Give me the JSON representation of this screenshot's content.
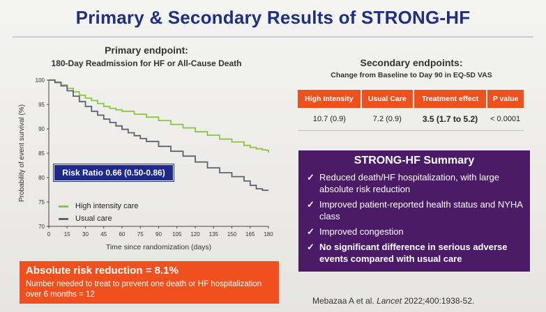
{
  "title": "Primary & Secondary Results of STRONG-HF",
  "primary": {
    "heading": "Primary endpoint:",
    "subheading": "180-Day Readmission for HF or All-Cause Death",
    "risk_ratio": "Risk Ratio 0.66 (0.50-0.86)"
  },
  "absolute_risk": {
    "title": "Absolute risk reduction = 8.1%",
    "nnt_text": "Number needed to treat to prevent one death or HF hospitalization over 6 months = 12"
  },
  "secondary": {
    "heading": "Secondary endpoints:",
    "subheading": "Change from Baseline to Day 90 in EQ-5D VAS",
    "table": {
      "headers": [
        "High Intensity",
        "Usual Care",
        "Treatment effect",
        "P value"
      ],
      "row": [
        "10.7 (0.9)",
        "7.2 (0.9)",
        "3.5 (1.7 to 5.2)",
        "< 0.0001"
      ]
    }
  },
  "summary": {
    "title": "STRONG-HF Summary",
    "check_glyph": "✓",
    "items": [
      "Reduced death/HF hospitalization, with large absolute risk reduction",
      "Improved patient-reported health status and NYHA class",
      "Improved congestion",
      "No significant difference in serious adverse events compared with usual care"
    ]
  },
  "citation": {
    "authors": "Mebazaa A et al.",
    "journal": "Lancet",
    "details": "2022;400:1938-52."
  },
  "colors": {
    "title": "#1f2f82",
    "high_intensity": "#8cc63f",
    "usual_care": "#5a6470",
    "accent_orange": "#f0501e",
    "summary_purple": "#4b1b68",
    "risk_box": "#1e2a8a"
  },
  "chart_data": {
    "type": "line",
    "xlabel": "Time since randomization (days)",
    "ylabel": "Probability of event survival (%)",
    "xlim": [
      0,
      180
    ],
    "ylim": [
      70,
      100
    ],
    "xticks": [
      0,
      15,
      30,
      45,
      60,
      75,
      90,
      105,
      120,
      135,
      150,
      165,
      180
    ],
    "yticks": [
      70,
      75,
      80,
      85,
      90,
      95,
      100
    ],
    "legend_position": "bottom-left",
    "grid": false,
    "series": [
      {
        "name": "High intensity care",
        "color": "#8cc63f",
        "x": [
          0,
          5,
          10,
          15,
          20,
          25,
          30,
          35,
          40,
          45,
          50,
          55,
          60,
          70,
          80,
          90,
          100,
          110,
          120,
          130,
          140,
          150,
          160,
          165,
          170,
          175,
          178,
          180
        ],
        "y": [
          100,
          99.6,
          99.0,
          98.3,
          97.6,
          96.9,
          96.3,
          95.8,
          95.2,
          94.6,
          94.2,
          93.9,
          93.6,
          93.0,
          92.4,
          91.7,
          90.9,
          90.2,
          89.4,
          88.7,
          87.9,
          87.3,
          86.6,
          86.2,
          85.9,
          85.7,
          85.6,
          85.1
        ]
      },
      {
        "name": "Usual care",
        "color": "#5a6470",
        "x": [
          0,
          5,
          10,
          15,
          20,
          25,
          30,
          35,
          40,
          45,
          50,
          55,
          60,
          65,
          70,
          75,
          80,
          90,
          100,
          110,
          120,
          130,
          140,
          150,
          160,
          165,
          170,
          175,
          180
        ],
        "y": [
          100,
          99.5,
          98.8,
          97.8,
          96.7,
          95.6,
          94.6,
          93.6,
          92.8,
          92.0,
          91.3,
          90.6,
          89.9,
          89.2,
          88.6,
          88.0,
          87.4,
          86.4,
          85.4,
          84.4,
          83.2,
          82.0,
          81.0,
          80.2,
          79.3,
          78.4,
          77.7,
          77.4,
          77.4
        ]
      }
    ]
  }
}
